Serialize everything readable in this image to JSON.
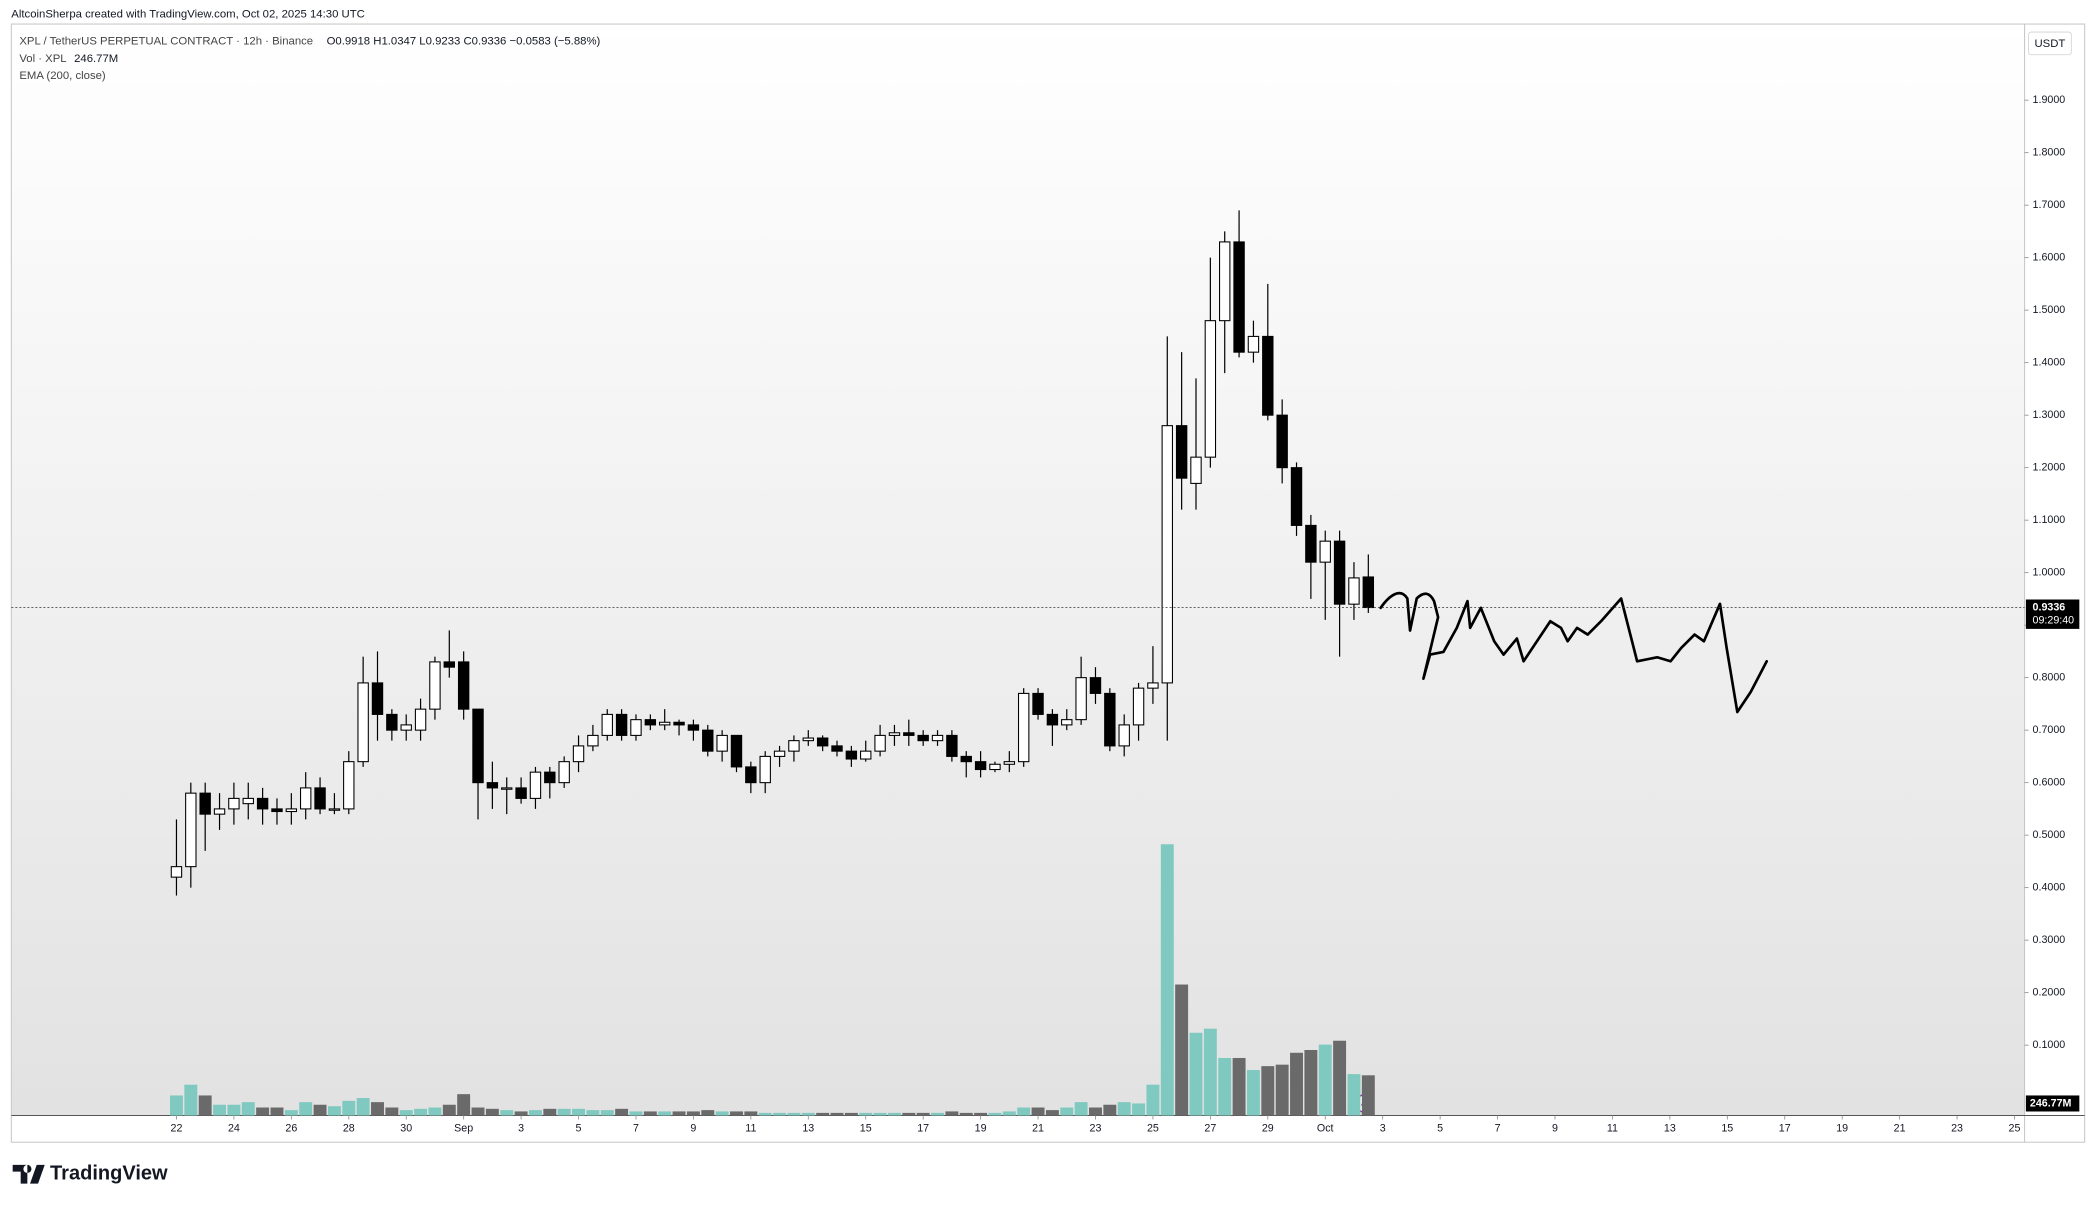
{
  "chart_data": {
    "type": "candlestick",
    "watermark": "AltcoinSherpa created with TradingView.com, Oct 02, 2025 14:30 UTC",
    "title": "XPL / TetherUS PERPETUAL CONTRACT · 12h · Binance",
    "ohlc_legend": "O0.9918 H1.0347 L0.9233 C0.9336 −0.0583 (−5.88%)",
    "volume_legend": "Vol · XPL",
    "indicator_legend": "EMA (200, close)",
    "currency": "USDT",
    "last_price_label": "0.9336",
    "countdown": "09:29:40",
    "brand": "TradingView",
    "up_color": "#ffffff",
    "down_color": "#000000",
    "volume_up_color": "#7fc9c0",
    "volume_down_color": "#6a6a6a",
    "open": [
      0.42,
      0.44,
      0.58,
      0.54,
      0.55,
      0.56,
      0.57,
      0.55,
      0.545,
      0.55,
      0.59,
      0.55,
      0.55,
      0.64,
      0.79,
      0.73,
      0.7,
      0.7,
      0.74,
      0.83,
      0.83,
      0.74,
      0.6,
      0.59,
      0.59,
      0.57,
      0.62,
      0.6,
      0.64,
      0.67,
      0.69,
      0.73,
      0.69,
      0.72,
      0.71,
      0.715,
      0.71,
      0.7,
      0.66,
      0.69,
      0.63,
      0.6,
      0.65,
      0.66,
      0.68,
      0.685,
      0.67,
      0.66,
      0.645,
      0.66,
      0.69,
      0.695,
      0.69,
      0.68,
      0.69,
      0.65,
      0.64,
      0.625,
      0.635,
      0.64,
      0.77,
      0.73,
      0.71,
      0.72,
      0.8,
      0.77,
      0.67,
      0.71,
      0.78,
      0.79,
      1.28,
      1.17,
      1.22,
      1.48,
      1.63,
      1.42,
      1.45,
      1.3,
      1.2,
      1.09,
      1.02,
      1.06,
      0.94,
      0.9918
    ],
    "high": [
      0.53,
      0.6,
      0.6,
      0.58,
      0.6,
      0.6,
      0.59,
      0.57,
      0.58,
      0.62,
      0.61,
      0.58,
      0.66,
      0.84,
      0.85,
      0.74,
      0.73,
      0.76,
      0.84,
      0.89,
      0.85,
      0.74,
      0.64,
      0.61,
      0.61,
      0.63,
      0.63,
      0.65,
      0.69,
      0.71,
      0.74,
      0.74,
      0.73,
      0.73,
      0.74,
      0.72,
      0.72,
      0.71,
      0.7,
      0.69,
      0.64,
      0.66,
      0.67,
      0.69,
      0.7,
      0.69,
      0.68,
      0.67,
      0.68,
      0.71,
      0.71,
      0.72,
      0.7,
      0.7,
      0.7,
      0.66,
      0.66,
      0.64,
      0.66,
      0.78,
      0.78,
      0.74,
      0.74,
      0.84,
      0.82,
      0.78,
      0.73,
      0.79,
      0.86,
      1.45,
      1.42,
      1.37,
      1.6,
      1.65,
      1.69,
      1.48,
      1.55,
      1.33,
      1.21,
      1.11,
      1.08,
      1.08,
      1.02,
      1.0347
    ],
    "low": [
      0.385,
      0.4,
      0.47,
      0.51,
      0.52,
      0.53,
      0.52,
      0.52,
      0.52,
      0.53,
      0.54,
      0.54,
      0.54,
      0.63,
      0.68,
      0.68,
      0.68,
      0.68,
      0.72,
      0.8,
      0.72,
      0.53,
      0.55,
      0.54,
      0.56,
      0.55,
      0.57,
      0.59,
      0.62,
      0.66,
      0.68,
      0.68,
      0.68,
      0.7,
      0.7,
      0.69,
      0.68,
      0.65,
      0.64,
      0.62,
      0.58,
      0.58,
      0.63,
      0.64,
      0.67,
      0.66,
      0.65,
      0.63,
      0.64,
      0.65,
      0.67,
      0.67,
      0.67,
      0.67,
      0.64,
      0.61,
      0.61,
      0.62,
      0.62,
      0.63,
      0.72,
      0.67,
      0.7,
      0.71,
      0.75,
      0.66,
      0.65,
      0.68,
      0.75,
      0.68,
      1.12,
      1.12,
      1.2,
      1.38,
      1.41,
      1.4,
      1.29,
      1.17,
      1.07,
      0.95,
      0.91,
      0.84,
      0.91,
      0.9233
    ],
    "close": [
      0.44,
      0.58,
      0.54,
      0.55,
      0.57,
      0.57,
      0.55,
      0.545,
      0.55,
      0.59,
      0.55,
      0.55,
      0.64,
      0.79,
      0.73,
      0.7,
      0.71,
      0.74,
      0.83,
      0.82,
      0.74,
      0.6,
      0.59,
      0.59,
      0.57,
      0.62,
      0.6,
      0.64,
      0.67,
      0.69,
      0.73,
      0.69,
      0.72,
      0.71,
      0.715,
      0.71,
      0.7,
      0.66,
      0.69,
      0.63,
      0.6,
      0.65,
      0.66,
      0.68,
      0.685,
      0.67,
      0.66,
      0.645,
      0.66,
      0.69,
      0.695,
      0.69,
      0.68,
      0.69,
      0.65,
      0.64,
      0.625,
      0.635,
      0.64,
      0.77,
      0.73,
      0.71,
      0.72,
      0.8,
      0.77,
      0.67,
      0.71,
      0.78,
      0.79,
      1.28,
      1.18,
      1.22,
      1.48,
      1.63,
      1.42,
      1.45,
      1.3,
      1.2,
      1.09,
      1.02,
      1.06,
      0.94,
      0.99,
      0.9336
    ],
    "volume": {
      "values": [
        123,
        189,
        123,
        66,
        66,
        82,
        49,
        49,
        33,
        82,
        66,
        57,
        90,
        107,
        82,
        49,
        33,
        41,
        49,
        66,
        131,
        49,
        41,
        33,
        25,
        33,
        41,
        41,
        41,
        33,
        33,
        41,
        25,
        25,
        25,
        25,
        25,
        33,
        25,
        25,
        25,
        16,
        16,
        16,
        16,
        16,
        16,
        16,
        16,
        16,
        16,
        16,
        16,
        16,
        25,
        16,
        16,
        16,
        25,
        49,
        49,
        33,
        49,
        82,
        49,
        66,
        82,
        74,
        189,
        1665,
        804,
        508,
        533,
        353,
        353,
        279,
        303,
        312,
        385,
        402,
        435,
        459,
        254,
        246.77
      ],
      "value_labels": [
        null,
        null,
        null,
        null,
        null,
        null,
        null,
        null,
        null,
        null,
        null,
        null,
        null,
        null,
        null,
        null,
        null,
        null,
        null,
        null,
        null,
        null,
        null,
        null,
        null,
        null,
        null,
        null,
        null,
        null,
        null,
        null,
        null,
        null,
        null,
        null,
        null,
        null,
        null,
        null,
        null,
        null,
        null,
        null,
        null,
        null,
        null,
        null,
        null,
        null,
        null,
        null,
        null,
        null,
        null,
        null,
        null,
        null,
        null,
        null,
        null,
        null,
        null,
        null,
        null,
        null,
        null,
        null,
        null,
        null,
        null,
        null,
        null,
        null,
        null,
        null,
        null,
        null,
        null,
        null,
        null,
        null,
        null,
        "246.77M"
      ],
      "vlim": [
        0,
        6700
      ]
    },
    "xlim": [
      -11.5,
      128.7
    ],
    "xticks": [
      {
        "value": 0,
        "label": "22"
      },
      {
        "value": 4,
        "label": "24"
      },
      {
        "value": 8,
        "label": "26"
      },
      {
        "value": 12,
        "label": "28"
      },
      {
        "value": 16,
        "label": "30"
      },
      {
        "value": 20,
        "label": "Sep"
      },
      {
        "value": 24,
        "label": "3"
      },
      {
        "value": 28,
        "label": "5"
      },
      {
        "value": 32,
        "label": "7"
      },
      {
        "value": 36,
        "label": "9"
      },
      {
        "value": 40,
        "label": "11"
      },
      {
        "value": 44,
        "label": "13"
      },
      {
        "value": 48,
        "label": "15"
      },
      {
        "value": 52,
        "label": "17"
      },
      {
        "value": 56,
        "label": "19"
      },
      {
        "value": 60,
        "label": "21"
      },
      {
        "value": 64,
        "label": "23"
      },
      {
        "value": 68,
        "label": "25"
      },
      {
        "value": 72,
        "label": "27"
      },
      {
        "value": 76,
        "label": "29"
      },
      {
        "value": 80,
        "label": "Oct"
      },
      {
        "value": 84,
        "label": "3"
      },
      {
        "value": 88,
        "label": "5"
      },
      {
        "value": 92,
        "label": "7"
      },
      {
        "value": 96,
        "label": "9"
      },
      {
        "value": 100,
        "label": "11"
      },
      {
        "value": 104,
        "label": "13"
      },
      {
        "value": 108,
        "label": "15"
      },
      {
        "value": 112,
        "label": "17"
      },
      {
        "value": 116,
        "label": "19"
      },
      {
        "value": 120,
        "label": "21"
      },
      {
        "value": 124,
        "label": "23"
      },
      {
        "value": 128,
        "label": "25"
      }
    ],
    "ylim": [
      -0.034,
      2.045
    ],
    "yticks": [
      {
        "value": 0.1,
        "label": "0.1000"
      },
      {
        "value": 0.2,
        "label": "0.2000"
      },
      {
        "value": 0.3,
        "label": "0.3000"
      },
      {
        "value": 0.4,
        "label": "0.4000"
      },
      {
        "value": 0.5,
        "label": "0.5000"
      },
      {
        "value": 0.6,
        "label": "0.6000"
      },
      {
        "value": 0.7,
        "label": "0.7000"
      },
      {
        "value": 0.8,
        "label": "0.8000"
      },
      {
        "value": 0.9,
        "label": "0.9000"
      },
      {
        "value": 1.0,
        "label": "1.0000"
      },
      {
        "value": 1.1,
        "label": "1.1000"
      },
      {
        "value": 1.2,
        "label": "1.2000"
      },
      {
        "value": 1.3,
        "label": "1.3000"
      },
      {
        "value": 1.4,
        "label": "1.4000"
      },
      {
        "value": 1.5,
        "label": "1.5000"
      },
      {
        "value": 1.6,
        "label": "1.6000"
      },
      {
        "value": 1.7,
        "label": "1.7000"
      },
      {
        "value": 1.8,
        "label": "1.8000"
      },
      {
        "value": 1.9,
        "label": "1.9000"
      }
    ]
  }
}
